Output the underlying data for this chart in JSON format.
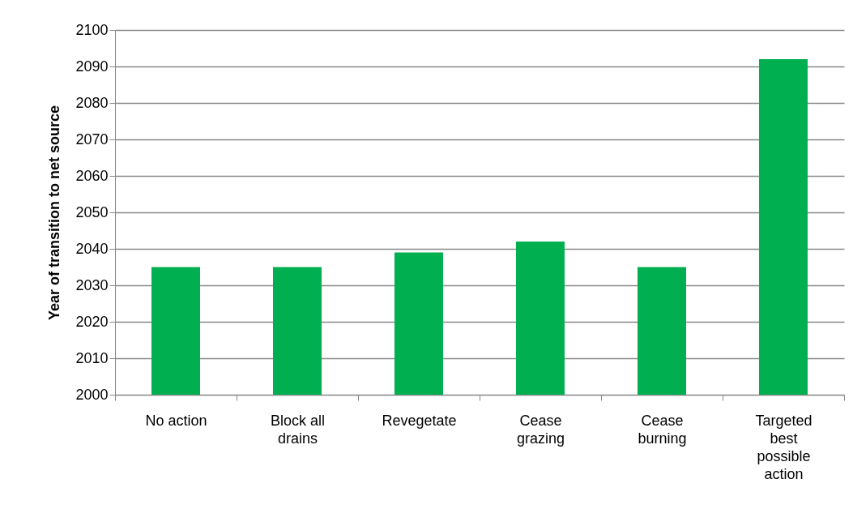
{
  "chart_data": {
    "type": "bar",
    "ylabel": "Year of transition to net source",
    "categories": [
      "No action",
      "Block all drains",
      "Revegetate",
      "Cease grazing",
      "Cease burning",
      "Targeted best possible action"
    ],
    "values": [
      2035,
      2035,
      2039,
      2042,
      2035,
      2092
    ],
    "color": "#00b050",
    "ylim": [
      2000,
      2100
    ],
    "yticks": [
      2000,
      2010,
      2020,
      2030,
      2040,
      2050,
      2060,
      2070,
      2080,
      2090,
      2100
    ],
    "grid": "y"
  }
}
